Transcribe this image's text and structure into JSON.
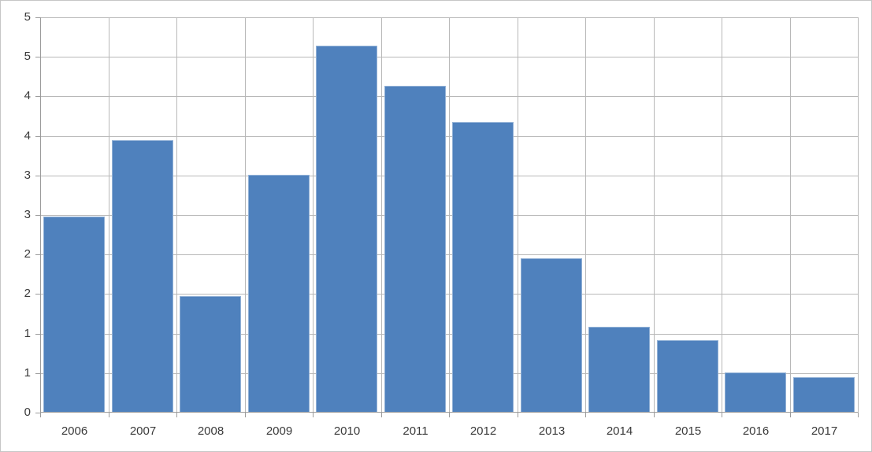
{
  "chart_data": {
    "type": "bar",
    "title": "",
    "xlabel": "",
    "ylabel": "",
    "categories": [
      "2006",
      "2007",
      "2008",
      "2009",
      "2010",
      "2011",
      "2012",
      "2013",
      "2014",
      "2015",
      "2016",
      "2017"
    ],
    "values": [
      2.48,
      3.45,
      1.47,
      3.01,
      4.64,
      4.13,
      3.68,
      1.95,
      1.09,
      0.92,
      0.51,
      0.45
    ],
    "ylim": [
      0,
      5
    ],
    "y_major_unit": 0.5,
    "y_tick_labels_top_down": [
      "5",
      "5",
      "4",
      "4",
      "3",
      "3",
      "2",
      "2",
      "1",
      "1",
      "0"
    ],
    "grid": true,
    "legend": "none",
    "bar_color": "#4f81bd",
    "gridline_color": "#b8b8b8",
    "axis_color": "#9b9b9b",
    "label_color": "#3a3a3a",
    "frame_border_color": "#c6c6c6",
    "background_color": "#ffffff"
  }
}
